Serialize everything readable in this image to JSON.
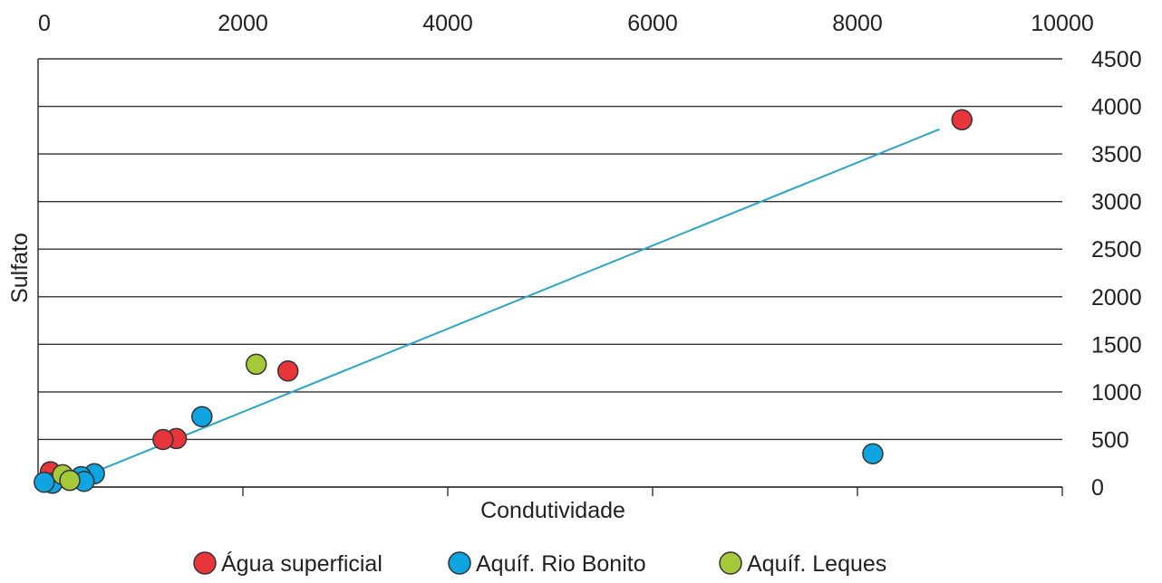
{
  "chart_data": {
    "type": "scatter",
    "title": "",
    "xlabel": "Condutividade",
    "ylabel": "Sulfato",
    "xlim": [
      0,
      10000
    ],
    "ylim": [
      0,
      4500
    ],
    "x_ticks": [
      "0",
      "2000",
      "4000",
      "6000",
      "8000",
      "10000"
    ],
    "y_ticks": [
      "0",
      "500",
      "1000",
      "1500",
      "2000",
      "2500",
      "3000",
      "3500",
      "4000",
      "4500"
    ],
    "grid": "horizontal",
    "x_axis_position": "top",
    "y_axis_position": "right",
    "legend_position": "bottom",
    "series": [
      {
        "name": "Água superficial",
        "color": "#e8353b",
        "points": [
          [
            9020,
            3860
          ],
          [
            2440,
            1220
          ],
          [
            1350,
            510
          ],
          [
            1220,
            500
          ],
          [
            120,
            160
          ]
        ]
      },
      {
        "name": "Aquíf. Rio Bonito",
        "color": "#0ea5e2",
        "points": [
          [
            8150,
            350
          ],
          [
            1600,
            740
          ],
          [
            550,
            140
          ],
          [
            420,
            110
          ],
          [
            450,
            60
          ],
          [
            140,
            40
          ],
          [
            60,
            50
          ]
        ]
      },
      {
        "name": "Aquíf. Leques",
        "color": "#a6c93a",
        "points": [
          [
            2130,
            1290
          ],
          [
            240,
            130
          ],
          [
            310,
            70
          ]
        ]
      }
    ],
    "trendline": {
      "color": "#2ba5c4",
      "start": [
        420,
        100
      ],
      "end": [
        8800,
        3760
      ]
    }
  }
}
